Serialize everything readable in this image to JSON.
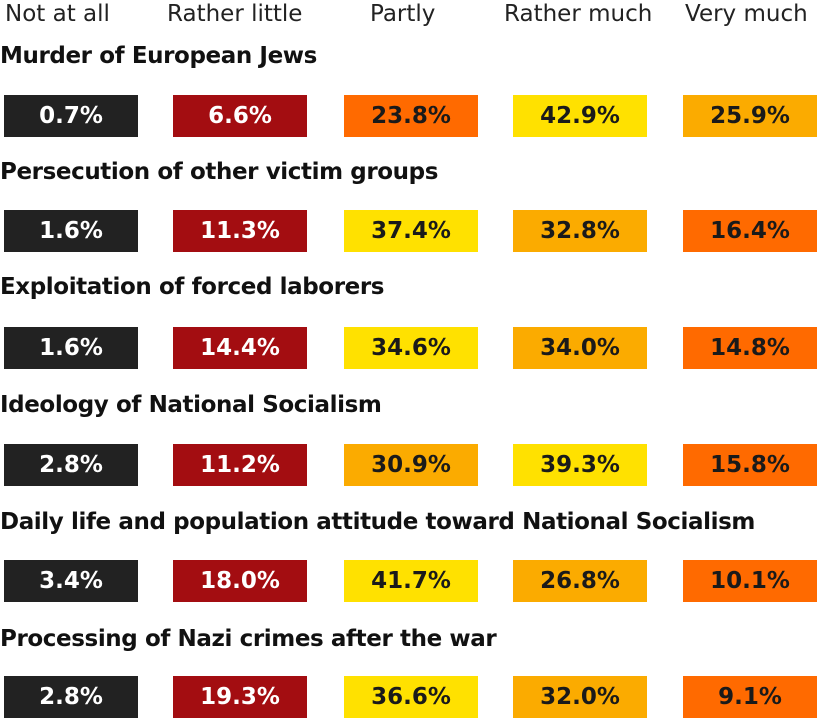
{
  "chart_data": {
    "type": "table",
    "columns": [
      "Not at all",
      "Rather little",
      "Partly",
      "Rather much",
      "Very much"
    ],
    "rows": [
      {
        "label": "Murder of European Jews",
        "values": [
          "0.7%",
          "6.6%",
          "23.8%",
          "42.9%",
          "25.9%"
        ]
      },
      {
        "label": "Persecution of other victim groups",
        "values": [
          "1.6%",
          "11.3%",
          "37.4%",
          "32.8%",
          "16.4%"
        ]
      },
      {
        "label": "Exploitation of forced laborers",
        "values": [
          "1.6%",
          "14.4%",
          "34.6%",
          "34.0%",
          "14.8%"
        ]
      },
      {
        "label": "Ideology of National Socialism",
        "values": [
          "2.8%",
          "11.2%",
          "30.9%",
          "39.3%",
          "15.8%"
        ]
      },
      {
        "label": "Daily life and population attitude toward National Socialism",
        "values": [
          "3.4%",
          "18.0%",
          "41.7%",
          "26.8%",
          "10.1%"
        ]
      },
      {
        "label": "Processing of Nazi crimes after the war",
        "values": [
          "2.8%",
          "19.3%",
          "36.6%",
          "32.0%",
          "9.1%"
        ]
      }
    ],
    "colors": {
      "not_at_all": "#222222",
      "rather_little": "#a30d11",
      "rank_1": "#ffe100",
      "rank_2": "#fbab00",
      "rank_3": "#ff6a00"
    }
  }
}
